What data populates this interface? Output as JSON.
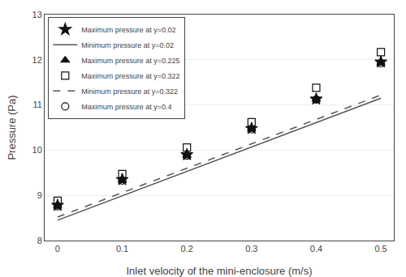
{
  "chart_data": {
    "type": "scatter",
    "xlabel": "Inlet velocity of the mini-enclosure (m/s)",
    "ylabel": "Pressure (Pa)",
    "xlim": [
      -0.02,
      0.52
    ],
    "ylim": [
      8,
      13
    ],
    "xticks": [
      0,
      0.1,
      0.2,
      0.3,
      0.4,
      0.5
    ],
    "yticks": [
      8,
      9,
      10,
      11,
      12,
      13
    ],
    "grid": "y",
    "legend": "upper left",
    "series": [
      {
        "name": "Maximum pressure at y=0.02",
        "type": "scatter",
        "marker": "star",
        "color": "#111111",
        "x": [
          0,
          0.1,
          0.2,
          0.3,
          0.4,
          0.5
        ],
        "values": [
          8.78,
          9.35,
          9.9,
          10.48,
          11.13,
          11.95
        ]
      },
      {
        "name": "Minimum pressure at y=0.02",
        "type": "line",
        "line_style": "solid",
        "color": "#555555",
        "x": [
          0,
          0.5
        ],
        "values": [
          8.45,
          11.15
        ]
      },
      {
        "name": "Maximum pressure at y=0.225",
        "type": "scatter",
        "marker": "triangle-up",
        "color": "#111111",
        "x": [
          0,
          0.1,
          0.2,
          0.3,
          0.4,
          0.5
        ],
        "values": [
          8.76,
          9.33,
          9.88,
          10.46,
          11.12,
          11.92
        ]
      },
      {
        "name": "Maximum pressure at y=0.322",
        "type": "scatter",
        "marker": "square-open",
        "color": "#111111",
        "x": [
          0,
          0.1,
          0.2,
          0.3,
          0.4,
          0.5
        ],
        "values": [
          8.88,
          9.47,
          10.06,
          10.62,
          11.38,
          12.17
        ]
      },
      {
        "name": "Minimum pressure at y=0.322",
        "type": "line",
        "line_style": "dashed",
        "color": "#555555",
        "x": [
          0,
          0.5
        ],
        "values": [
          8.52,
          11.22
        ]
      },
      {
        "name": "Maximum pressure at y=0.4",
        "type": "scatter",
        "marker": "circle-open",
        "color": "#111111",
        "x": [
          0,
          0.1,
          0.2,
          0.3,
          0.4,
          0.5
        ],
        "values": [
          8.76,
          9.33,
          9.88,
          10.46,
          11.12,
          11.92
        ]
      }
    ]
  }
}
